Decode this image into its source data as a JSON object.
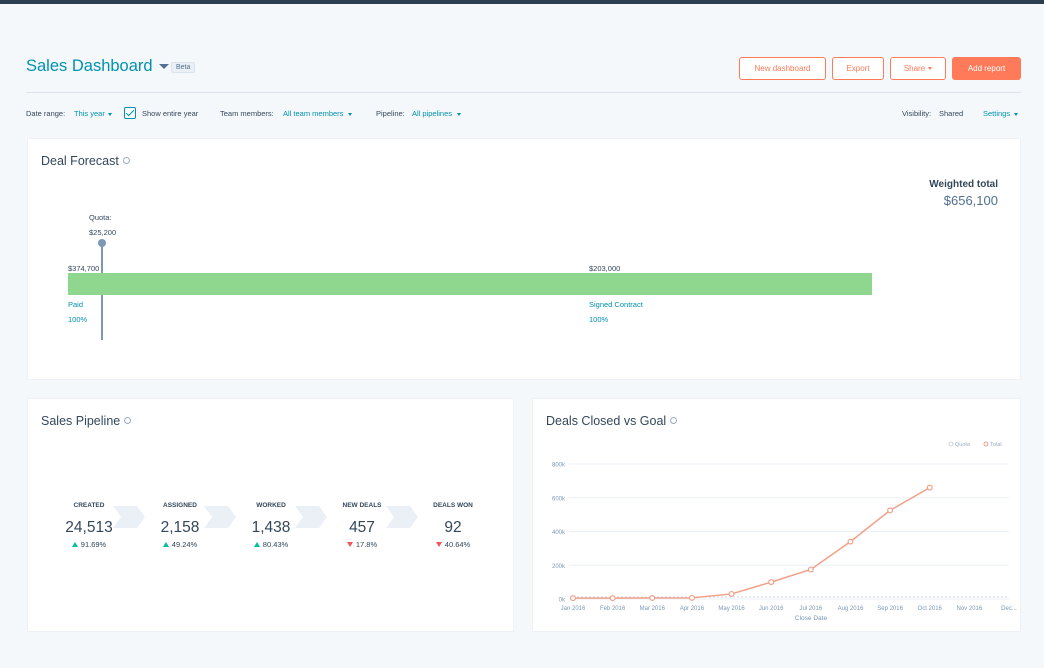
{
  "header": {
    "title": "Sales Dashboard",
    "badge": "Beta",
    "buttons": {
      "new_dashboard": "New dashboard",
      "export": "Export",
      "share": "Share",
      "add_report": "Add report"
    }
  },
  "filters": {
    "date_range_label": "Date range:",
    "date_range_value": "This year",
    "show_entire_year": "Show entire year",
    "show_entire_year_checked": true,
    "team_members_label": "Team members:",
    "team_members_value": "All team members",
    "pipeline_label": "Pipeline:",
    "pipeline_value": "All pipelines",
    "visibility_label": "Visibility:",
    "visibility_value": "Shared",
    "settings": "Settings"
  },
  "deal_forecast": {
    "title": "Deal Forecast",
    "quota_label": "Quota:",
    "quota_value": "$25,200",
    "weighted_total_label": "Weighted total",
    "weighted_total_value": "$656,100",
    "segments": [
      {
        "amount": "$374,700",
        "stage": "Paid",
        "probability": "100%"
      },
      {
        "amount": "$203,000",
        "stage": "Signed Contract",
        "probability": "100%"
      }
    ]
  },
  "sales_pipeline": {
    "title": "Sales Pipeline",
    "stages": [
      {
        "label": "CREATED",
        "value": "24,513",
        "change": "91.69%",
        "direction": "up"
      },
      {
        "label": "ASSIGNED",
        "value": "2,158",
        "change": "49.24%",
        "direction": "up"
      },
      {
        "label": "WORKED",
        "value": "1,438",
        "change": "80.43%",
        "direction": "up"
      },
      {
        "label": "NEW DEALS",
        "value": "457",
        "change": "17.8%",
        "direction": "down"
      },
      {
        "label": "DEALS WON",
        "value": "92",
        "change": "40.64%",
        "direction": "down"
      }
    ]
  },
  "deals_closed": {
    "title": "Deals Closed vs Goal"
  },
  "chart_data": {
    "type": "line",
    "title": "Deals Closed vs Goal",
    "xlabel": "Close Date",
    "ylabel": "",
    "categories": [
      "Jan 2016",
      "Feb 2016",
      "Mar 2016",
      "Apr 2016",
      "May 2016",
      "Jun 2016",
      "Jul 2016",
      "Aug 2016",
      "Sep 2016",
      "Oct 2016",
      "Nov 2016",
      "Dec..."
    ],
    "yticks": [
      "0k",
      "200k",
      "400k",
      "600k",
      "800k"
    ],
    "ylim": [
      0,
      800000
    ],
    "legend": "top-right",
    "series": [
      {
        "name": "Quota",
        "color": "#cbd6e2",
        "values": [
          12000,
          12000,
          12000,
          12000,
          12000,
          12000,
          12000,
          12000,
          12000,
          12000,
          12000,
          12000
        ]
      },
      {
        "name": "Total",
        "color": "#f2a088",
        "values": [
          5000,
          5000,
          6000,
          7000,
          30000,
          100000,
          175000,
          340000,
          525000,
          660000,
          null,
          null
        ]
      }
    ]
  }
}
